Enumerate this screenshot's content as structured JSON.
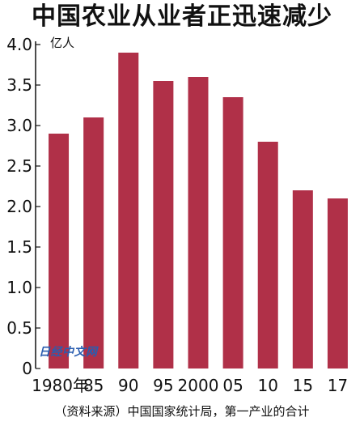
{
  "chart_data": {
    "type": "bar",
    "title": "中国农业从业者正迅速减少",
    "ylabel": "亿人",
    "xlabel": "",
    "categories": [
      "1980年",
      "85",
      "90",
      "95",
      "2000",
      "05",
      "10",
      "15",
      "17"
    ],
    "values": [
      2.9,
      3.1,
      3.9,
      3.55,
      3.6,
      3.35,
      2.8,
      2.2,
      2.1
    ],
    "ylim": [
      0,
      4.0
    ],
    "yticks": [
      "0",
      "0.5",
      "1.0",
      "1.5",
      "2.0",
      "2.5",
      "3.0",
      "3.5",
      "4.0"
    ],
    "grid": false,
    "bar_color": "#b03048",
    "source": "（资料来源）中国国家统计局，第一产业的合计",
    "watermark": "日经中文网"
  }
}
